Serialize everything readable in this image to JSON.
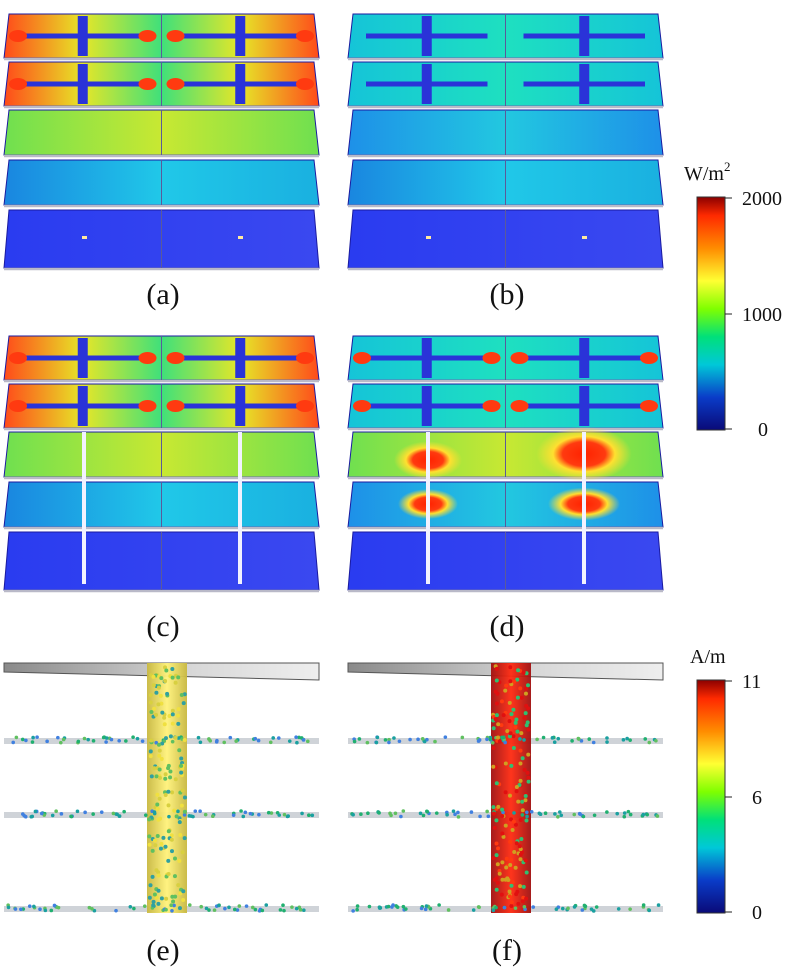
{
  "panels": [
    {
      "id": "a",
      "label": "(a)"
    },
    {
      "id": "b",
      "label": "(b)"
    },
    {
      "id": "c",
      "label": "(c)"
    },
    {
      "id": "d",
      "label": "(d)"
    },
    {
      "id": "e",
      "label": "(e)"
    },
    {
      "id": "f",
      "label": "(f)"
    }
  ],
  "colorbars": {
    "power_density": {
      "unit": "W/m",
      "unit_sup": "2",
      "ticks": [
        "2000",
        "1000",
        "0"
      ]
    },
    "current_density": {
      "unit": "A/m",
      "ticks": [
        "11",
        "6",
        "0"
      ]
    }
  },
  "colormap": [
    "#8b0000",
    "#ff2a00",
    "#ff8c00",
    "#ffff33",
    "#7fff00",
    "#00e07a",
    "#00c8d8",
    "#0a3cc8",
    "#0a0a78"
  ]
}
